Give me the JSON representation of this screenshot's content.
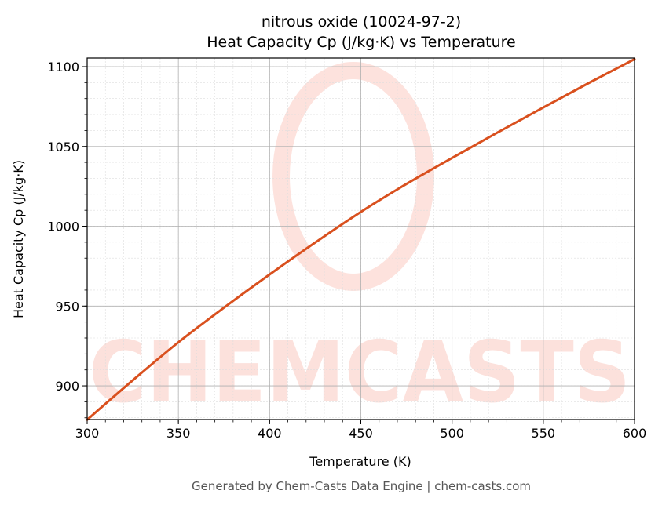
{
  "chart_data": {
    "type": "line",
    "title": "nitrous oxide (10024-97-2)",
    "subtitle": "Heat Capacity Cp (J/kg·K) vs Temperature",
    "xlabel": "Temperature (K)",
    "ylabel": "Heat Capacity Cp (J/kg·K)",
    "xlim": [
      300,
      600
    ],
    "ylim": [
      878.9,
      1105.4
    ],
    "xticks": [
      300,
      350,
      400,
      450,
      500,
      550,
      600
    ],
    "yticks": [
      900,
      950,
      1000,
      1050,
      1100
    ],
    "grid": true,
    "series": [
      {
        "x": [
          300,
          325,
          350,
          375,
          400,
          425,
          450,
          475,
          500,
          525,
          550,
          575,
          600
        ],
        "y": [
          878.8,
          903.5,
          927.3,
          949.0,
          969.8,
          989.8,
          1009.0,
          1026.5,
          1042.8,
          1058.8,
          1074.4,
          1089.8,
          1104.7
        ],
        "color": "#d9501e"
      }
    ],
    "watermark": "CHEMCASTS",
    "footer": "Generated by Chem-Casts Data Engine | chem-casts.com"
  }
}
